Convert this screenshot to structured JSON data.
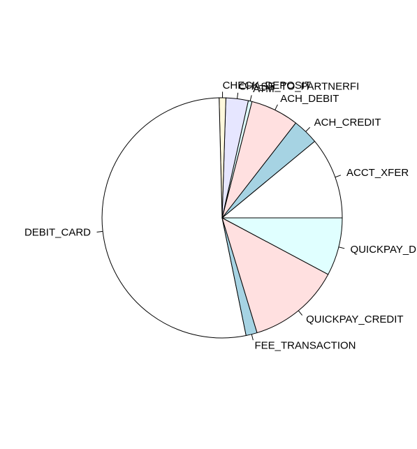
{
  "chart_data": {
    "type": "pie",
    "title": "",
    "direction": "counterclockwise",
    "start_angle_deg": 0,
    "slices": [
      {
        "label": "ACCT_XFER",
        "value": 11.0,
        "color": "#FFFFFF"
      },
      {
        "label": "ACH_CREDIT",
        "value": 3.5,
        "color": "#A6D3E3"
      },
      {
        "label": "ACH_DEBIT",
        "value": 6.5,
        "color": "#FFE0E0"
      },
      {
        "label": "ATM",
        "value": 0.5,
        "color": "#E0FFFF"
      },
      {
        "label": "CHASE_TO_PARTNERFI",
        "value": 3.0,
        "color": "#E6E6FF"
      },
      {
        "label": "CHECK_DEPOSIT",
        "value": 0.9,
        "color": "#FFF8DC"
      },
      {
        "label": "DEBIT_CARD",
        "value": 52.8,
        "color": "#FFFFFF"
      },
      {
        "label": "FEE_TRANSACTION",
        "value": 1.5,
        "color": "#A6D3E3"
      },
      {
        "label": "QUICKPAY_CREDIT",
        "value": 12.5,
        "color": "#FFE0E0"
      },
      {
        "label": "QUICKPAY_DEBIT",
        "value": 7.8,
        "color": "#E0FFFF"
      }
    ]
  }
}
